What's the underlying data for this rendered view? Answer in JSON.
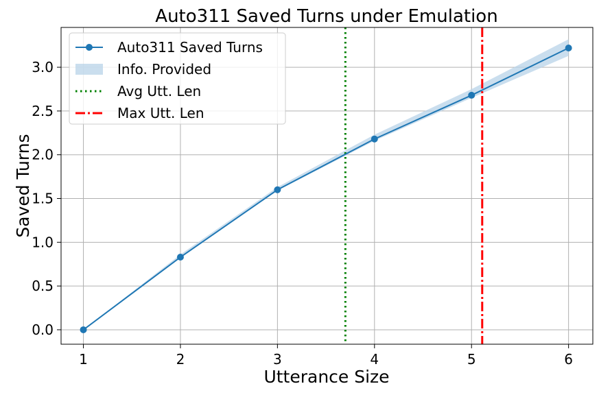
{
  "chart_data": {
    "type": "line",
    "title": "Auto311 Saved Turns under Emulation",
    "xlabel": "Utterance Size",
    "ylabel": "Saved Turns",
    "xlim": [
      0.77,
      6.25
    ],
    "ylim": [
      -0.165,
      3.455
    ],
    "x_ticks": [
      1,
      2,
      3,
      4,
      5,
      6
    ],
    "y_ticks": [
      0.0,
      0.5,
      1.0,
      1.5,
      2.0,
      2.5,
      3.0
    ],
    "x_tick_labels": [
      "1",
      "2",
      "3",
      "4",
      "5",
      "6"
    ],
    "y_tick_labels": [
      "0.0",
      "0.5",
      "1.0",
      "1.5",
      "2.0",
      "2.5",
      "3.0"
    ],
    "grid": true,
    "legend_position": "top-left",
    "series": [
      {
        "name": "Auto311 Saved Turns",
        "kind": "line-marker",
        "color": "#1f77b4",
        "x": [
          1,
          2,
          3,
          4,
          5,
          6
        ],
        "values": [
          0.0,
          0.83,
          1.6,
          2.18,
          2.68,
          3.22
        ]
      },
      {
        "name": "Info. Provided",
        "kind": "band",
        "color": "#b8d3e8",
        "x": [
          1,
          2,
          3,
          4,
          5,
          6
        ],
        "lower": [
          0.0,
          0.82,
          1.59,
          2.16,
          2.65,
          3.13
        ],
        "upper": [
          0.0,
          0.86,
          1.63,
          2.23,
          2.75,
          3.32
        ]
      },
      {
        "name": "Avg Utt. Len",
        "kind": "vline",
        "style": "dotted",
        "color": "#008000",
        "x": 3.7
      },
      {
        "name": "Max Utt. Len",
        "kind": "vline",
        "style": "dashdot",
        "color": "#ff0000",
        "x": 5.11
      }
    ]
  }
}
